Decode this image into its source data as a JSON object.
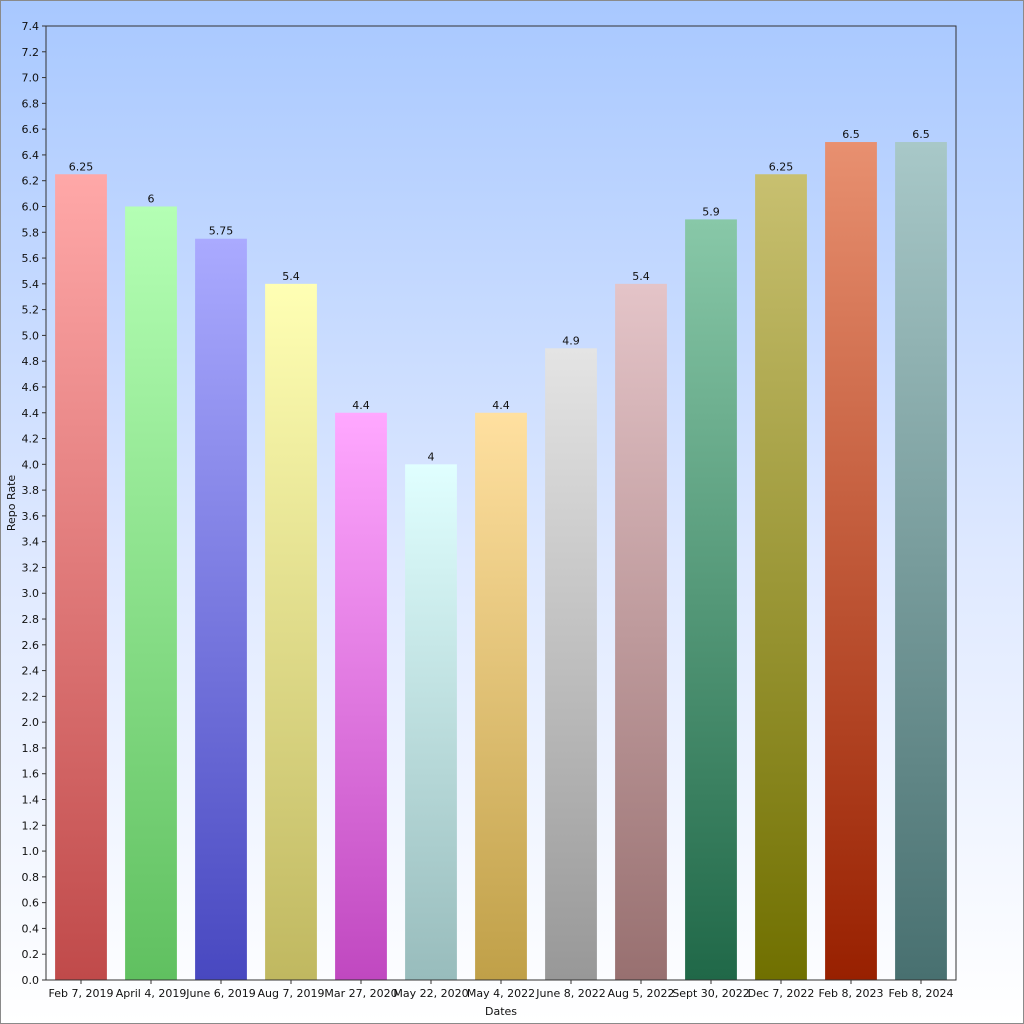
{
  "chart_data": {
    "type": "bar",
    "categories": [
      "Feb 7, 2019",
      "April 4, 2019",
      "June 6, 2019",
      "Aug 7, 2019",
      "Mar 27, 2020",
      "May 22, 2020",
      "May 4, 2022",
      "June 8, 2022",
      "Aug 5, 2022",
      "Sept 30, 2022",
      "Dec 7, 2022",
      "Feb 8, 2023",
      "Feb 8, 2024"
    ],
    "values": [
      6.25,
      6,
      5.75,
      5.4,
      4.4,
      4,
      4.4,
      4.9,
      5.4,
      5.9,
      6.25,
      6.5,
      6.5
    ],
    "data_labels": [
      "6.25",
      "6",
      "5.75",
      "5.4",
      "4.4",
      "4",
      "4.4",
      "4.9",
      "5.4",
      "5.9",
      "6.25",
      "6.5",
      "6.5"
    ],
    "xlabel": "Dates",
    "ylabel": "Repo Rate",
    "ylim": [
      0,
      7.4
    ],
    "ytick_step": 0.2,
    "grid": false,
    "legend": "none",
    "bar_colors": [
      {
        "top": "#ffa8a8",
        "bottom": "#c04a4a"
      },
      {
        "top": "#b4ffb4",
        "bottom": "#60c060"
      },
      {
        "top": "#aaaaff",
        "bottom": "#4848c0"
      },
      {
        "top": "#ffffb4",
        "bottom": "#c0b860"
      },
      {
        "top": "#ffa8ff",
        "bottom": "#c048c0"
      },
      {
        "top": "#e0ffff",
        "bottom": "#98bcbc"
      },
      {
        "top": "#ffe0a0",
        "bottom": "#c0a048"
      },
      {
        "top": "#e4e4e4",
        "bottom": "#989898"
      },
      {
        "top": "#e4c4c8",
        "bottom": "#987070"
      },
      {
        "top": "#88c8a8",
        "bottom": "#206848"
      },
      {
        "top": "#c8c070",
        "bottom": "#707000"
      },
      {
        "top": "#e89070",
        "bottom": "#982000"
      },
      {
        "top": "#a8c8c8",
        "bottom": "#487070"
      }
    ]
  }
}
